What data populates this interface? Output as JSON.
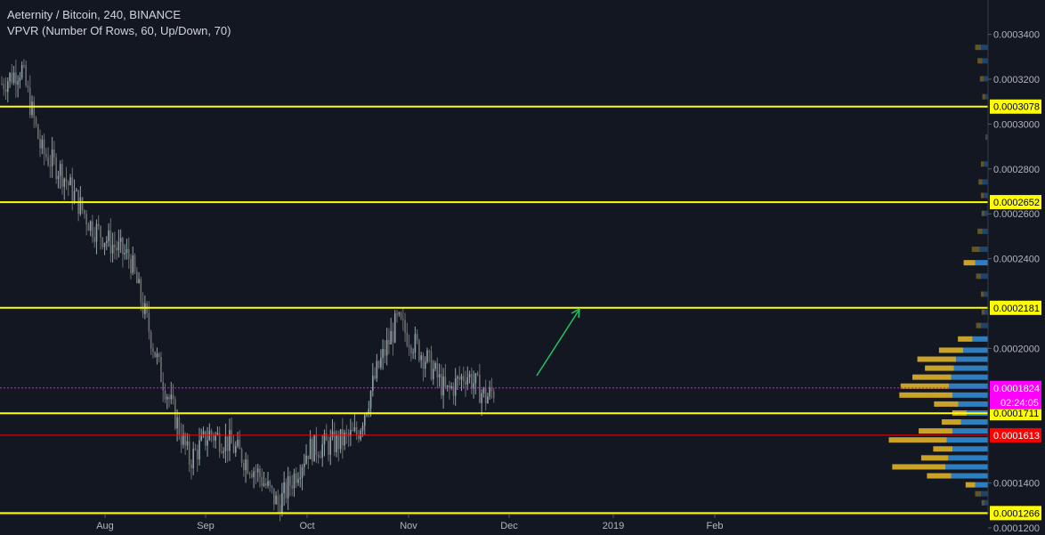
{
  "header": {
    "symbol": "Aeternity / Bitcoin, 240, BINANCE",
    "indicator": "VPVR (Number Of Rows, 60, Up/Down, 70)"
  },
  "colors": {
    "background": "#131722",
    "level_line": "#ffff00",
    "red_line": "#ff0000",
    "current_price": "#ff00ff",
    "arrow": "#22c55e",
    "vp_up": "#2f7fc0",
    "vp_down": "#c9a227"
  },
  "chart_data": {
    "type": "candlestick",
    "y_ticks": [
      "0.0003400",
      "0.0003200",
      "0.0003000",
      "0.0002800",
      "0.0002600",
      "0.0002400",
      "0.0002000",
      "0.0001400",
      "0.0001200"
    ],
    "x_ticks": [
      "Aug",
      "Sep",
      "Oct",
      "Nov",
      "Dec",
      "2019",
      "Feb"
    ],
    "ylim": [
      0.000115,
      0.000345
    ],
    "horizontal_levels": [
      {
        "label": "0.0003078",
        "value": 0.0003078,
        "color": "#ffff00"
      },
      {
        "label": "0.0002652",
        "value": 0.0002652,
        "color": "#ffff00"
      },
      {
        "label": "0.0002181",
        "value": 0.0002181,
        "color": "#ffff00"
      },
      {
        "label": "0.0001711",
        "value": 0.0001711,
        "color": "#ffff00"
      },
      {
        "label": "0.0001613",
        "value": 0.0001613,
        "color": "#ff0000"
      },
      {
        "label": "0.0001266",
        "value": 0.0001266,
        "color": "#ffff00"
      }
    ],
    "current_price": {
      "label": "0.0001824",
      "value": 0.0001824,
      "countdown": "02:24:05"
    },
    "price_path": [
      [
        0,
        0.000318
      ],
      [
        0.02,
        0.000325
      ],
      [
        0.04,
        0.000288
      ],
      [
        0.06,
        0.000279
      ],
      [
        0.09,
        0.000255
      ],
      [
        0.11,
        0.000247
      ],
      [
        0.13,
        0.00024
      ],
      [
        0.16,
        0.00019
      ],
      [
        0.19,
        0.00015
      ],
      [
        0.21,
        0.000162
      ],
      [
        0.23,
        0.000158
      ],
      [
        0.26,
        0.000144
      ],
      [
        0.28,
        0.00013
      ],
      [
        0.31,
        0.000155
      ],
      [
        0.34,
        0.000158
      ],
      [
        0.36,
        0.000162
      ],
      [
        0.38,
        0.00019
      ],
      [
        0.4,
        0.000212
      ],
      [
        0.43,
        0.000195
      ],
      [
        0.45,
        0.00018
      ],
      [
        0.47,
        0.000189
      ],
      [
        0.49,
        0.000178
      ],
      [
        0.5,
        0.000182
      ]
    ],
    "volume_profile": {
      "rows": [
        {
          "price": 0.000334,
          "up": 0.1,
          "down": 0.06
        },
        {
          "price": 0.000328,
          "up": 0.08,
          "down": 0.05
        },
        {
          "price": 0.00032,
          "up": 0.06,
          "down": 0.04
        },
        {
          "price": 0.000312,
          "up": 0.04,
          "down": 0.03
        },
        {
          "price": 0.000294,
          "up": 0.02,
          "down": 0.01
        },
        {
          "price": 0.000282,
          "up": 0.06,
          "down": 0.03
        },
        {
          "price": 0.000274,
          "up": 0.08,
          "down": 0.04
        },
        {
          "price": 0.000268,
          "up": 0.06,
          "down": 0.03
        },
        {
          "price": 0.00026,
          "up": 0.05,
          "down": 0.03
        },
        {
          "price": 0.000252,
          "up": 0.08,
          "down": 0.05
        },
        {
          "price": 0.000244,
          "up": 0.12,
          "down": 0.08
        },
        {
          "price": 0.000238,
          "up": 0.18,
          "down": 0.12
        },
        {
          "price": 0.000232,
          "up": 0.1,
          "down": 0.05
        },
        {
          "price": 0.000224,
          "up": 0.06,
          "down": 0.03
        },
        {
          "price": 0.000216,
          "up": 0.05,
          "down": 0.03
        },
        {
          "price": 0.00021,
          "up": 0.1,
          "down": 0.05
        },
        {
          "price": 0.000204,
          "up": 0.22,
          "down": 0.15
        },
        {
          "price": 0.000199,
          "up": 0.35,
          "down": 0.25
        },
        {
          "price": 0.000195,
          "up": 0.45,
          "down": 0.4
        },
        {
          "price": 0.000191,
          "up": 0.48,
          "down": 0.3
        },
        {
          "price": 0.000187,
          "up": 0.52,
          "down": 0.4
        },
        {
          "price": 0.000183,
          "up": 0.55,
          "down": 0.5
        },
        {
          "price": 0.000179,
          "up": 0.5,
          "down": 0.55
        },
        {
          "price": 0.000175,
          "up": 0.42,
          "down": 0.25
        },
        {
          "price": 0.000171,
          "up": 0.3,
          "down": 0.15
        },
        {
          "price": 0.000167,
          "up": 0.38,
          "down": 0.2
        },
        {
          "price": 0.000163,
          "up": 0.5,
          "down": 0.35
        },
        {
          "price": 0.000159,
          "up": 0.58,
          "down": 0.6
        },
        {
          "price": 0.000155,
          "up": 0.5,
          "down": 0.2
        },
        {
          "price": 0.000151,
          "up": 0.56,
          "down": 0.28
        },
        {
          "price": 0.000147,
          "up": 0.6,
          "down": 0.55
        },
        {
          "price": 0.000143,
          "up": 0.52,
          "down": 0.25
        },
        {
          "price": 0.000139,
          "up": 0.18,
          "down": 0.1
        },
        {
          "price": 0.000135,
          "up": 0.1,
          "down": 0.06
        },
        {
          "price": 0.000131,
          "up": 0.05,
          "down": 0.03
        }
      ]
    }
  }
}
